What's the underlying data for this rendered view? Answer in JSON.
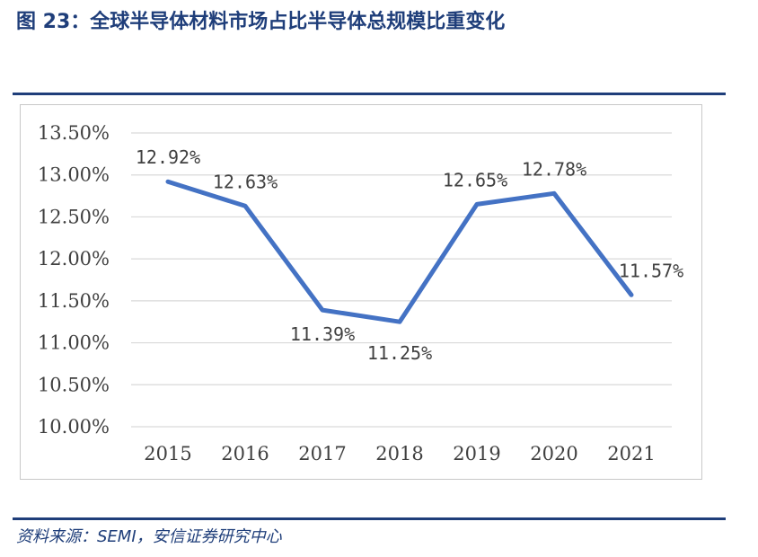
{
  "figure": {
    "title": "图 23：全球半导体材料市场占比半导体总规模比重变化",
    "source": "资料来源：SEMI，安信证券研究中心"
  },
  "colors": {
    "title": "#1f3e7a",
    "rule": "#1f3e7a",
    "line": "#4472c4",
    "grid": "#d9d9d9",
    "text": "#404040"
  },
  "chart_data": {
    "type": "line",
    "title": "",
    "xlabel": "",
    "ylabel": "",
    "categories": [
      "2015",
      "2016",
      "2017",
      "2018",
      "2019",
      "2020",
      "2021"
    ],
    "values": [
      12.92,
      12.63,
      11.39,
      11.25,
      12.65,
      12.78,
      11.57
    ],
    "data_labels": [
      "12.92%",
      "12.63%",
      "11.39%",
      "11.25%",
      "12.65%",
      "12.78%",
      "11.57%"
    ],
    "ylim": [
      10.0,
      13.5
    ],
    "yticks": [
      10.0,
      10.5,
      11.0,
      11.5,
      12.0,
      12.5,
      13.0,
      13.5
    ],
    "ytick_labels": [
      "10.00%",
      "10.50%",
      "11.00%",
      "11.50%",
      "12.00%",
      "12.50%",
      "13.00%",
      "13.50%"
    ],
    "grid": true,
    "legend": "none"
  }
}
